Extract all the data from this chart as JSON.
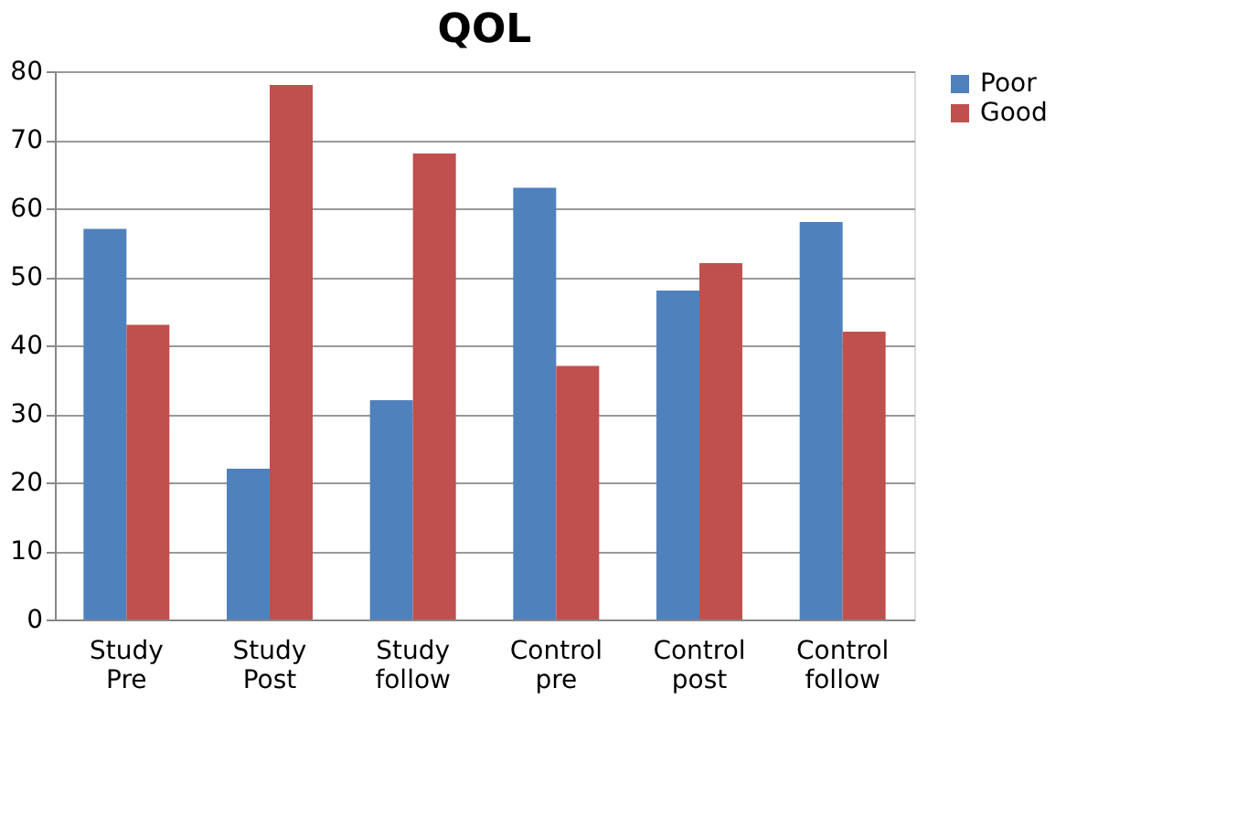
{
  "chart_data": {
    "type": "bar",
    "title": "QOL",
    "categories": [
      "Study Pre",
      "Study Post",
      "Study follow",
      "Control pre",
      "Control post",
      "Control follow"
    ],
    "series": [
      {
        "name": "Poor",
        "color": "#4f81bd",
        "values": [
          57,
          22,
          32,
          63,
          48,
          58
        ]
      },
      {
        "name": "Good",
        "color": "#c0504d",
        "values": [
          43,
          78,
          68,
          37,
          52,
          42
        ]
      }
    ],
    "ylim": [
      0,
      80
    ],
    "yticks": [
      0,
      10,
      20,
      30,
      40,
      50,
      60,
      70,
      80
    ],
    "grid": "y",
    "legend": "right"
  }
}
